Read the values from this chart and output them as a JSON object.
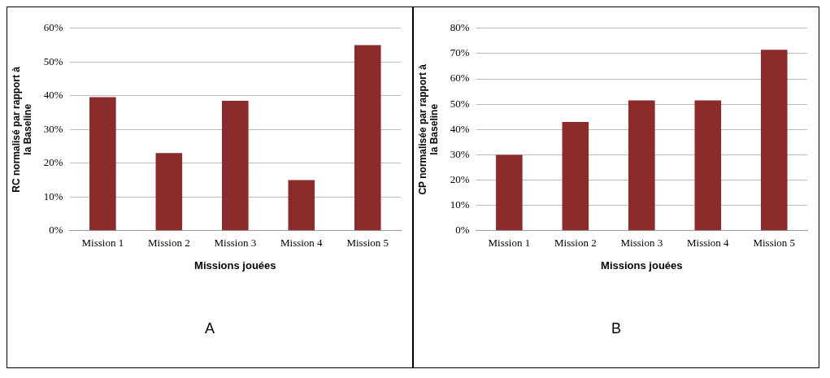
{
  "chart_data": [
    {
      "type": "bar",
      "categories": [
        "Mission 1",
        "Mission 2",
        "Mission 3",
        "Mission 4",
        "Mission 5"
      ],
      "values": [
        39.6,
        23,
        38.5,
        15,
        55
      ],
      "color": "#8b2b2b",
      "ylabel": "RC normalisé par rapport à la Baseline",
      "xlabel": "Missions jouées",
      "ylim": [
        0,
        60
      ],
      "yticks": [
        {
          "value": 0,
          "label": "0%"
        },
        {
          "value": 10,
          "label": "10%"
        },
        {
          "value": 20,
          "label": "20%"
        },
        {
          "value": 30,
          "label": "30%"
        },
        {
          "value": 40,
          "label": "40%"
        },
        {
          "value": 50,
          "label": "50%"
        },
        {
          "value": 60,
          "label": "60%"
        }
      ],
      "grid": "y",
      "legend": false,
      "annotations": [
        "A"
      ]
    },
    {
      "type": "bar",
      "categories": [
        "Mission 1",
        "Mission 2",
        "Mission 3",
        "Mission 4",
        "Mission 5"
      ],
      "values": [
        30,
        43,
        51.5,
        51.5,
        71.5
      ],
      "color": "#8b2b2b",
      "ylabel": "CP normalisée par rapport à la Baseline",
      "xlabel": "Missions jouées",
      "ylim": [
        0,
        80
      ],
      "yticks": [
        {
          "value": 0,
          "label": "0%"
        },
        {
          "value": 10,
          "label": "10%"
        },
        {
          "value": 20,
          "label": "20%"
        },
        {
          "value": 30,
          "label": "30%"
        },
        {
          "value": 40,
          "label": "40%"
        },
        {
          "value": 50,
          "label": "50%"
        },
        {
          "value": 60,
          "label": "60%"
        },
        {
          "value": 70,
          "label": "70%"
        },
        {
          "value": 80,
          "label": "80%"
        }
      ],
      "grid": "y",
      "legend": false,
      "annotations": [
        "B"
      ]
    }
  ]
}
